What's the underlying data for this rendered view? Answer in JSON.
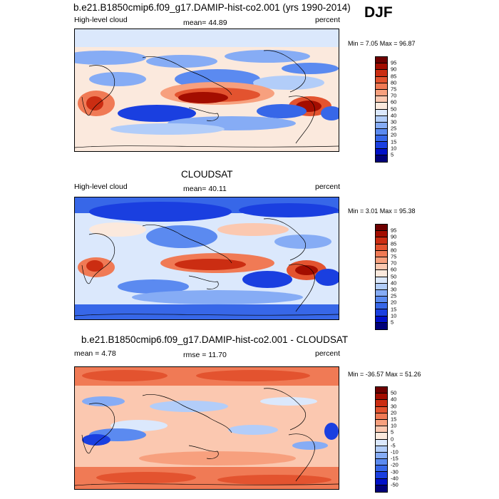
{
  "season": "DJF",
  "panels": [
    {
      "title": "b.e21.B1850cmip6.f09_g17.DAMIP-hist-co2.001 (yrs 1990-2014)",
      "left": "High-level cloud",
      "center": "mean=  44.89",
      "right": "percent",
      "minmax": "Min =   7.05 Max =  96.87",
      "colorbar_labels": [
        "95",
        "90",
        "85",
        "80",
        "75",
        "70",
        "60",
        "50",
        "40",
        "30",
        "25",
        "20",
        "15",
        "10",
        "5"
      ]
    },
    {
      "title": "CLOUDSAT",
      "left": "High-level cloud",
      "center": "mean=  40.11",
      "right": "percent",
      "minmax": "Min =   3.01 Max =  95.38",
      "colorbar_labels": [
        "95",
        "90",
        "85",
        "80",
        "75",
        "70",
        "60",
        "50",
        "40",
        "30",
        "25",
        "20",
        "15",
        "10",
        "5"
      ]
    },
    {
      "title": "b.e21.B1850cmip6.f09_g17.DAMIP-hist-co2.001 - CLOUDSAT",
      "left": "mean =   4.78",
      "center": "rmse =  11.70",
      "right": "percent",
      "minmax": "Min = -36.57 Max =  51.26",
      "colorbar_labels": [
        "50",
        "40",
        "30",
        "20",
        "15",
        "10",
        "5",
        "0",
        "-5",
        "-10",
        "-15",
        "-20",
        "-30",
        "-40",
        "-50"
      ]
    }
  ],
  "colors": {
    "palette": [
      "#00007a",
      "#0010c8",
      "#1a3fe0",
      "#3767e8",
      "#5b8af0",
      "#86acf5",
      "#b2cdf9",
      "#dbe8fc",
      "#fbe9dd",
      "#fbc8b0",
      "#f7a07e",
      "#f07a55",
      "#e3532f",
      "#cb2d12",
      "#a30d00",
      "#6e0000"
    ]
  }
}
